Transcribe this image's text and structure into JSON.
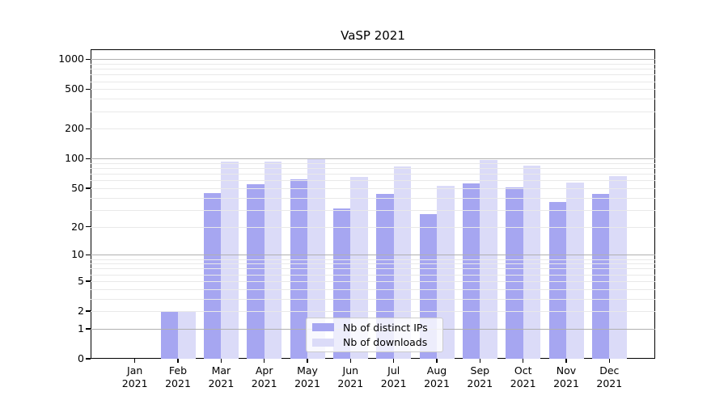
{
  "chart_data": {
    "type": "bar",
    "title": "VaSP 2021",
    "categories": [
      "Jan 2021",
      "Feb 2021",
      "Mar 2021",
      "Apr 2021",
      "May 2021",
      "Jun 2021",
      "Jul 2021",
      "Aug 2021",
      "Sep 2021",
      "Oct 2021",
      "Nov 2021",
      "Dec 2021"
    ],
    "series": [
      {
        "name": "Nb of distinct IPs",
        "color": "#a6a6f1",
        "values": [
          0,
          2,
          45,
          55,
          62,
          31,
          44,
          27,
          56,
          51,
          36,
          44
        ]
      },
      {
        "name": "Nb of downloads",
        "color": "#dbdbf8",
        "values": [
          0,
          2,
          93,
          93,
          100,
          65,
          84,
          53,
          97,
          85,
          57,
          66
        ]
      }
    ],
    "yscale": "log10(value+1)",
    "ylim": [
      0,
      1250
    ],
    "yticks": [
      0,
      1,
      2,
      5,
      10,
      20,
      50,
      100,
      200,
      500,
      1000
    ],
    "ytick_labels": [
      "0",
      "1",
      "2",
      "5",
      "10",
      "20",
      "50",
      "100",
      "200",
      "500",
      "1000"
    ],
    "major_gridline_values": [
      1,
      10,
      100,
      1000
    ],
    "minor_gridline_values": [
      2,
      3,
      4,
      5,
      6,
      7,
      8,
      9,
      20,
      30,
      40,
      50,
      60,
      70,
      80,
      90,
      200,
      300,
      400,
      500,
      600,
      700,
      800,
      900
    ],
    "grid": true,
    "legend_position": "lower center"
  },
  "colors": {
    "major_grid": "#b0b0b0",
    "minor_grid": "#e9e9e9",
    "spine": "#000000",
    "text": "#000000",
    "legend_border": "#cccccc"
  }
}
